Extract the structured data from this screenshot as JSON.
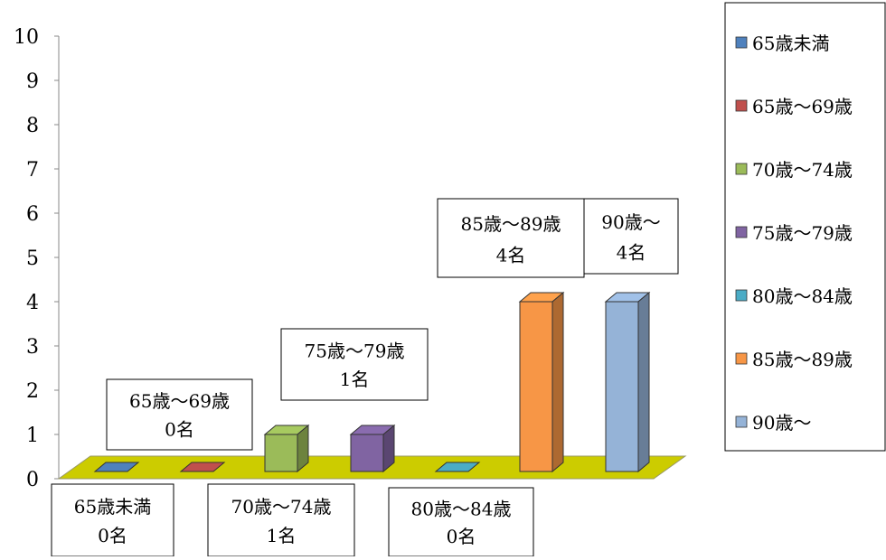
{
  "chart_data": {
    "type": "bar",
    "title": "",
    "xlabel": "",
    "ylabel": "",
    "ylim": [
      0,
      10
    ],
    "yticks": [
      "0",
      "1",
      "2",
      "3",
      "4",
      "5",
      "6",
      "7",
      "8",
      "9",
      "10"
    ],
    "grid": false,
    "legend_position": "right",
    "categories": [
      "65歳未満",
      "65歳～69歳",
      "70歳～74歳",
      "75歳～79歳",
      "80歳～84歳",
      "85歳～89歳",
      "90歳～"
    ],
    "values": [
      0,
      0,
      1,
      1,
      0,
      4,
      4
    ],
    "colors": [
      "#4f81bd",
      "#c0504d",
      "#9bbb59",
      "#8064a2",
      "#4bacc6",
      "#f79646",
      "#95b3d7"
    ],
    "floor_color": "#cccc00",
    "data_labels": [
      {
        "name": "65歳未満",
        "value": "0名"
      },
      {
        "name": "65歳～69歳",
        "value": "0名"
      },
      {
        "name": "70歳～74歳",
        "value": "1名"
      },
      {
        "name": "75歳～79歳",
        "value": "1名"
      },
      {
        "name": "80歳～84歳",
        "value": "0名"
      },
      {
        "name": "85歳～89歳",
        "value": "4名"
      },
      {
        "name": "90歳～",
        "value": "4名"
      }
    ],
    "legend": [
      "65歳未満",
      "65歳～69歳",
      "70歳～74歳",
      "75歳～79歳",
      "80歳～84歳",
      "85歳～89歳",
      "90歳～"
    ]
  }
}
